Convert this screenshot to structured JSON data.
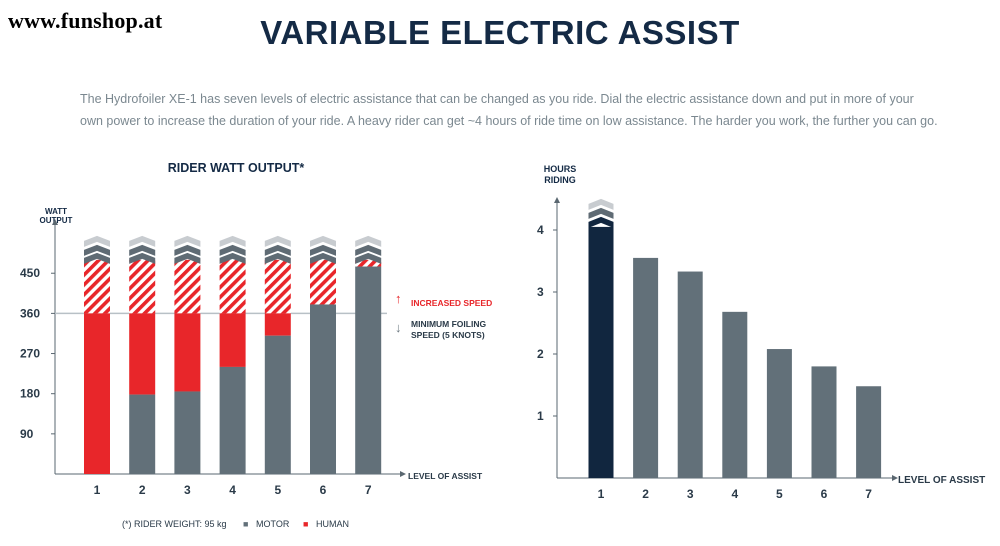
{
  "header": {
    "watermark": "www.funshop.at",
    "title": "VARIABLE ELECTRIC ASSIST",
    "intro": "The Hydrofoiler XE-1 has seven levels of electric assistance that can be changed as you ride. Dial the electric assistance down and put in more of your own power to increase the duration of your ride. A heavy rider can get ~4 hours of ride time on low assistance. The harder you work, the further you can go."
  },
  "colors": {
    "motor": "#627079",
    "human": "#e8262a",
    "highlight": "#11263f",
    "axis": "#5a6770",
    "grid": "#d6dadd",
    "chevron_light": "#c8ccd0",
    "chevron_dark": "#5f6b74"
  },
  "chart_data": [
    {
      "type": "bar",
      "title": "RIDER WATT OUTPUT*",
      "ylabel": "WATT OUTPUT",
      "xlabel": "LEVEL OF ASSIST",
      "ylim": [
        0,
        520
      ],
      "yticks": [
        90,
        180,
        270,
        360,
        450
      ],
      "categories": [
        "1",
        "2",
        "3",
        "4",
        "5",
        "6",
        "7"
      ],
      "series": [
        {
          "name": "MOTOR",
          "values": [
            0,
            178,
            185,
            240,
            310,
            380,
            465
          ]
        },
        {
          "name": "HUMAN",
          "values": [
            360,
            182,
            175,
            120,
            50,
            0,
            0
          ]
        }
      ],
      "hatched_top": [
        480,
        480,
        480,
        480,
        480,
        480,
        480
      ],
      "reference_line": 360,
      "annotations": {
        "above": "INCREASED SPEED",
        "below_1": "MINIMUM FOILING",
        "below_2": "SPEED (5 KNOTS)",
        "above_arrow": "↑",
        "below_arrow": "↓"
      },
      "footnote": "(*) RIDER WEIGHT: 95 kg",
      "legend": [
        {
          "label": "MOTOR",
          "marker": "■"
        },
        {
          "label": "HUMAN",
          "marker": "■"
        }
      ]
    },
    {
      "type": "bar",
      "title": "",
      "ylabel_1": "HOURS",
      "ylabel_2": "RIDING",
      "xlabel": "LEVEL OF ASSIST",
      "ylim": [
        0,
        4.8
      ],
      "yticks": [
        1,
        2,
        3,
        4
      ],
      "categories": [
        "1",
        "2",
        "3",
        "4",
        "5",
        "6",
        "7"
      ],
      "values": [
        4.05,
        3.55,
        3.33,
        2.68,
        2.08,
        1.8,
        1.48
      ],
      "highlight_index": 0
    }
  ]
}
